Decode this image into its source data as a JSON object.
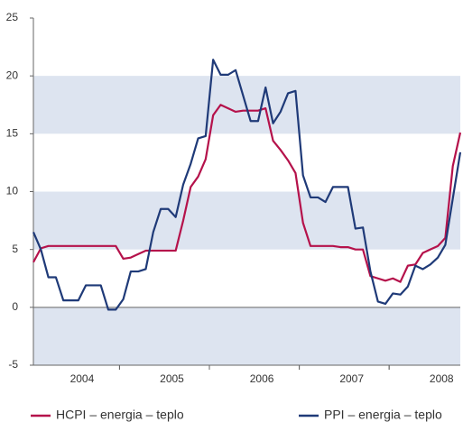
{
  "chart_data": {
    "type": "line",
    "categories": [
      null,
      null,
      null,
      null,
      null,
      null,
      "2004",
      null,
      null,
      null,
      null,
      null,
      null,
      null,
      null,
      null,
      null,
      null,
      "2005",
      null,
      null,
      null,
      null,
      null,
      null,
      null,
      null,
      null,
      null,
      null,
      "2006",
      null,
      null,
      null,
      null,
      null,
      null,
      null,
      null,
      null,
      null,
      null,
      "2007",
      null,
      null,
      null,
      null,
      null,
      null,
      null,
      null,
      null,
      null,
      null,
      "2008",
      null,
      null,
      null
    ],
    "series": [
      {
        "name": "HCPI – energia – teplo",
        "color": "#b5124b",
        "values": [
          3.9,
          5.1,
          5.3,
          5.3,
          5.3,
          5.3,
          5.3,
          5.3,
          5.3,
          5.3,
          5.3,
          5.3,
          4.2,
          4.3,
          4.6,
          4.9,
          4.9,
          4.9,
          4.9,
          4.9,
          7.5,
          10.4,
          11.3,
          12.8,
          16.6,
          17.5,
          17.2,
          16.9,
          17.0,
          17.0,
          17.0,
          17.2,
          14.4,
          13.6,
          12.7,
          11.6,
          7.3,
          5.3,
          5.3,
          5.3,
          5.3,
          5.2,
          5.2,
          5.0,
          5.0,
          2.7,
          2.5,
          2.3,
          2.5,
          2.2,
          3.6,
          3.7,
          4.7,
          5.0,
          5.3,
          6.0,
          12.2,
          15.1
        ]
      },
      {
        "name": "PPI – energia – teplo",
        "color": "#1f3a78",
        "values": [
          6.5,
          5.0,
          2.6,
          2.6,
          0.6,
          0.6,
          0.6,
          1.9,
          1.9,
          1.9,
          -0.2,
          -0.2,
          0.7,
          3.1,
          3.1,
          3.3,
          6.5,
          8.5,
          8.5,
          7.8,
          10.6,
          12.4,
          14.6,
          14.8,
          21.4,
          20.1,
          20.1,
          20.5,
          18.3,
          16.1,
          16.1,
          19.0,
          15.9,
          16.9,
          18.5,
          18.7,
          11.4,
          9.5,
          9.5,
          9.1,
          10.4,
          10.4,
          10.4,
          6.8,
          6.9,
          3.1,
          0.5,
          0.3,
          1.2,
          1.1,
          1.8,
          3.6,
          3.3,
          3.7,
          4.3,
          5.4,
          9.4,
          13.4
        ]
      }
    ],
    "ylim": [
      -5,
      25
    ],
    "yticks": [
      -5,
      0,
      5,
      10,
      15,
      20,
      25
    ],
    "band_color": "#dde4f0"
  }
}
